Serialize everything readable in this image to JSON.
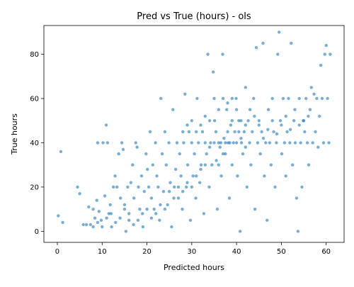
{
  "chart_data": {
    "type": "scatter",
    "title": "Pred vs True (hours) - ols",
    "xlabel": "Predicted hours",
    "ylabel": "True hours",
    "xlim": [
      -3,
      64
    ],
    "ylim": [
      -5,
      93
    ],
    "xticks": [
      0,
      10,
      20,
      30,
      40,
      50,
      60
    ],
    "yticks": [
      0,
      20,
      40,
      60,
      80
    ],
    "grid": false,
    "point_color": "#1f77b4",
    "point_alpha": 0.6,
    "series": [
      {
        "points": [
          [
            0.2,
            7
          ],
          [
            0.8,
            36
          ],
          [
            1.2,
            4
          ],
          [
            4.5,
            20
          ],
          [
            5.0,
            17
          ],
          [
            5.8,
            3
          ],
          [
            6.5,
            3
          ],
          [
            7.0,
            11
          ],
          [
            7.4,
            3
          ],
          [
            8.0,
            10
          ],
          [
            8.4,
            6
          ],
          [
            8.8,
            14
          ],
          [
            9.0,
            40
          ],
          [
            9.3,
            9
          ],
          [
            9.8,
            5
          ],
          [
            10.2,
            40
          ],
          [
            10.6,
            16
          ],
          [
            10.9,
            48
          ],
          [
            11.2,
            40
          ],
          [
            11.5,
            8
          ],
          [
            11.8,
            12
          ],
          [
            12.1,
            2
          ],
          [
            12.5,
            20
          ],
          [
            12.9,
            25
          ],
          [
            13.3,
            20
          ],
          [
            13.7,
            35
          ],
          [
            14.1,
            15
          ],
          [
            14.4,
            40
          ],
          [
            14.7,
            37
          ],
          [
            15.0,
            10
          ],
          [
            15.3,
            0
          ],
          [
            15.7,
            20
          ],
          [
            16.0,
            5
          ],
          [
            16.4,
            22
          ],
          [
            16.8,
            30
          ],
          [
            17.1,
            15
          ],
          [
            17.5,
            40
          ],
          [
            17.8,
            38
          ],
          [
            18.1,
            20
          ],
          [
            18.4,
            10
          ],
          [
            18.8,
            25
          ],
          [
            19.1,
            2
          ],
          [
            19.4,
            18
          ],
          [
            19.8,
            35
          ],
          [
            20.1,
            28
          ],
          [
            20.4,
            20
          ],
          [
            20.7,
            45
          ],
          [
            21.0,
            15
          ],
          [
            21.3,
            30
          ],
          [
            21.6,
            10
          ],
          [
            21.9,
            40
          ],
          [
            22.2,
            25
          ],
          [
            22.5,
            20
          ],
          [
            22.8,
            5
          ],
          [
            23.1,
            60
          ],
          [
            23.4,
            35
          ],
          [
            23.7,
            18
          ],
          [
            24.0,
            45
          ],
          [
            24.3,
            30
          ],
          [
            24.6,
            12
          ],
          [
            24.9,
            40
          ],
          [
            25.2,
            22
          ],
          [
            25.5,
            2
          ],
          [
            25.8,
            55
          ],
          [
            26.1,
            20
          ],
          [
            26.4,
            28
          ],
          [
            26.7,
            40
          ],
          [
            27.0,
            15
          ],
          [
            27.3,
            35
          ],
          [
            27.6,
            25
          ],
          [
            27.9,
            10
          ],
          [
            28.2,
            40
          ],
          [
            28.5,
            62
          ],
          [
            28.8,
            20
          ],
          [
            29.1,
            30
          ],
          [
            29.4,
            45
          ],
          [
            29.7,
            5
          ],
          [
            30.0,
            40
          ],
          [
            30.3,
            25
          ],
          [
            30.6,
            35
          ],
          [
            30.9,
            15
          ],
          [
            31.2,
            60
          ],
          [
            31.5,
            40
          ],
          [
            31.8,
            22
          ],
          [
            32.1,
            30
          ],
          [
            32.4,
            45
          ],
          [
            32.7,
            8
          ],
          [
            33.0,
            40
          ],
          [
            33.3,
            35
          ],
          [
            33.6,
            80
          ],
          [
            33.9,
            20
          ],
          [
            34.2,
            40
          ],
          [
            34.5,
            30
          ],
          [
            34.8,
            72
          ],
          [
            35.1,
            50
          ],
          [
            35.4,
            45
          ],
          [
            35.7,
            10
          ],
          [
            36.0,
            40
          ],
          [
            36.3,
            38
          ],
          [
            36.6,
            25
          ],
          [
            36.9,
            80
          ],
          [
            37.2,
            42
          ],
          [
            37.5,
            35
          ],
          [
            37.8,
            55
          ],
          [
            38.1,
            40
          ],
          [
            38.4,
            15
          ],
          [
            38.7,
            48
          ],
          [
            39.0,
            30
          ],
          [
            39.3,
            40
          ],
          [
            39.6,
            45
          ],
          [
            39.9,
            60
          ],
          [
            40.2,
            25
          ],
          [
            40.5,
            50
          ],
          [
            40.8,
            0
          ],
          [
            41.1,
            40
          ],
          [
            41.4,
            35
          ],
          [
            41.7,
            45
          ],
          [
            42.0,
            65
          ],
          [
            42.3,
            20
          ],
          [
            42.6,
            50
          ],
          [
            42.9,
            40
          ],
          [
            43.2,
            30
          ],
          [
            43.5,
            45
          ],
          [
            43.8,
            60
          ],
          [
            44.1,
            10
          ],
          [
            44.4,
            83
          ],
          [
            44.7,
            40
          ],
          [
            45.0,
            50
          ],
          [
            45.3,
            35
          ],
          [
            45.6,
            45
          ],
          [
            45.9,
            85
          ],
          [
            46.2,
            25
          ],
          [
            46.5,
            40
          ],
          [
            46.8,
            5
          ],
          [
            47.1,
            55
          ],
          [
            47.4,
            40
          ],
          [
            47.7,
            30
          ],
          [
            48.0,
            60
          ],
          [
            48.3,
            45
          ],
          [
            48.6,
            20
          ],
          [
            48.9,
            40
          ],
          [
            49.2,
            80
          ],
          [
            49.5,
            90
          ],
          [
            49.8,
            50
          ],
          [
            50.1,
            35
          ],
          [
            50.4,
            60
          ],
          [
            50.7,
            40
          ],
          [
            51.0,
            25
          ],
          [
            51.3,
            45
          ],
          [
            51.6,
            60
          ],
          [
            51.9,
            40
          ],
          [
            52.2,
            85
          ],
          [
            52.5,
            30
          ],
          [
            52.8,
            50
          ],
          [
            53.1,
            40
          ],
          [
            53.4,
            15
          ],
          [
            53.7,
            0
          ],
          [
            54.0,
            60
          ],
          [
            54.3,
            40
          ],
          [
            54.6,
            20
          ],
          [
            54.9,
            50
          ],
          [
            55.2,
            45
          ],
          [
            55.5,
            60
          ],
          [
            55.8,
            40
          ],
          [
            56.1,
            30
          ],
          [
            56.4,
            55
          ],
          [
            56.7,
            65
          ],
          [
            57.0,
            40
          ],
          [
            57.3,
            62
          ],
          [
            57.6,
            45
          ],
          [
            57.9,
            60
          ],
          [
            58.2,
            38
          ],
          [
            58.5,
            52
          ],
          [
            58.8,
            75
          ],
          [
            59.1,
            60
          ],
          [
            59.4,
            40
          ],
          [
            59.7,
            80
          ],
          [
            60.0,
            84
          ],
          [
            60.3,
            60
          ],
          [
            60.6,
            40
          ],
          [
            60.9,
            80
          ],
          [
            35.0,
            40
          ],
          [
            36.5,
            40
          ],
          [
            37.5,
            40
          ],
          [
            38.5,
            40
          ],
          [
            40.0,
            40
          ],
          [
            41.0,
            42
          ],
          [
            42.0,
            38
          ],
          [
            38.0,
            45
          ],
          [
            39.0,
            50
          ],
          [
            40.5,
            45
          ],
          [
            37.0,
            35
          ],
          [
            36.0,
            30
          ],
          [
            35.5,
            32
          ],
          [
            34.0,
            38
          ],
          [
            33.0,
            30
          ],
          [
            32.0,
            28
          ],
          [
            31.0,
            25
          ],
          [
            30.0,
            20
          ],
          [
            29.0,
            22
          ],
          [
            28.0,
            18
          ],
          [
            27.0,
            20
          ],
          [
            26.0,
            15
          ],
          [
            25.0,
            18
          ],
          [
            24.0,
            10
          ],
          [
            23.0,
            12
          ],
          [
            22.0,
            8
          ],
          [
            21.0,
            6
          ],
          [
            20.0,
            10
          ],
          [
            19.0,
            8
          ],
          [
            18.0,
            5
          ],
          [
            17.0,
            3
          ],
          [
            16.0,
            8
          ],
          [
            15.0,
            12
          ],
          [
            14.0,
            6
          ],
          [
            13.0,
            4
          ],
          [
            12.0,
            8
          ],
          [
            11.0,
            6
          ],
          [
            10.0,
            2
          ],
          [
            9.0,
            4
          ],
          [
            8.0,
            2
          ],
          [
            45.0,
            48
          ],
          [
            46.0,
            42
          ],
          [
            47.0,
            46
          ],
          [
            48.0,
            50
          ],
          [
            49.0,
            44
          ],
          [
            50.0,
            48
          ],
          [
            51.0,
            52
          ],
          [
            52.0,
            46
          ],
          [
            53.0,
            55
          ],
          [
            54.0,
            48
          ],
          [
            55.0,
            50
          ],
          [
            56.0,
            52
          ],
          [
            44.0,
            52
          ],
          [
            43.0,
            55
          ],
          [
            42.0,
            48
          ],
          [
            41.0,
            50
          ],
          [
            40.0,
            55
          ],
          [
            39.0,
            60
          ],
          [
            38.0,
            58
          ],
          [
            37.0,
            60
          ],
          [
            36.0,
            55
          ],
          [
            35.0,
            60
          ],
          [
            34.0,
            50
          ],
          [
            33.0,
            52
          ],
          [
            32.0,
            48
          ],
          [
            31.0,
            45
          ],
          [
            30.0,
            50
          ],
          [
            29.0,
            48
          ],
          [
            28.0,
            45
          ]
        ]
      }
    ]
  }
}
